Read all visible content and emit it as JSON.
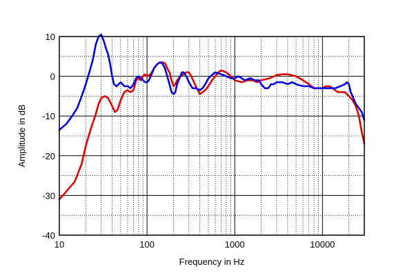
{
  "chart_data": {
    "type": "line",
    "xlabel": "Frequency in Hz",
    "ylabel": "Amplitude in dB",
    "xscale": "log",
    "xlim": [
      10,
      30000
    ],
    "ylim": [
      -40,
      10
    ],
    "grid": "on (major solid, minor dotted)",
    "legend": "none",
    "x_tick_labels": [
      "10",
      "100",
      "1000",
      "10000"
    ],
    "y_tick_labels": [
      "10",
      "0",
      "-10",
      "-20",
      "-30",
      "-40"
    ],
    "series": [
      {
        "color": "#e00000",
        "points": [
          [
            10,
            -31
          ],
          [
            12,
            -29
          ],
          [
            15,
            -26.5
          ],
          [
            18,
            -22
          ],
          [
            20,
            -17.5
          ],
          [
            23,
            -13
          ],
          [
            26,
            -9.5
          ],
          [
            28,
            -7
          ],
          [
            30,
            -5.5
          ],
          [
            33,
            -5
          ],
          [
            36,
            -5.5
          ],
          [
            40,
            -7.5
          ],
          [
            43,
            -9
          ],
          [
            46,
            -8.5
          ],
          [
            50,
            -6
          ],
          [
            55,
            -4
          ],
          [
            60,
            -3.5
          ],
          [
            65,
            -4
          ],
          [
            70,
            -3.5
          ],
          [
            75,
            -1
          ],
          [
            80,
            -0.5
          ],
          [
            85,
            -1
          ],
          [
            90,
            0
          ],
          [
            95,
            0.5
          ],
          [
            100,
            0
          ],
          [
            110,
            0.5
          ],
          [
            120,
            2
          ],
          [
            130,
            3
          ],
          [
            140,
            3.5
          ],
          [
            150,
            3.5
          ],
          [
            160,
            3.3
          ],
          [
            170,
            2
          ],
          [
            180,
            1
          ],
          [
            190,
            -1
          ],
          [
            200,
            -2.5
          ],
          [
            210,
            -2
          ],
          [
            220,
            -1
          ],
          [
            240,
            0
          ],
          [
            260,
            0.5
          ],
          [
            280,
            1
          ],
          [
            300,
            1
          ],
          [
            320,
            0
          ],
          [
            350,
            -2
          ],
          [
            380,
            -3.5
          ],
          [
            400,
            -4.5
          ],
          [
            430,
            -4
          ],
          [
            460,
            -3.5
          ],
          [
            500,
            -2.5
          ],
          [
            550,
            -1
          ],
          [
            600,
            0
          ],
          [
            650,
            1
          ],
          [
            700,
            1.5
          ],
          [
            800,
            1
          ],
          [
            900,
            0
          ],
          [
            1000,
            -1
          ],
          [
            1200,
            -1.5
          ],
          [
            1400,
            -1
          ],
          [
            1600,
            -1
          ],
          [
            1800,
            -1.5
          ],
          [
            2000,
            -1
          ],
          [
            2500,
            -0.5
          ],
          [
            3000,
            0.3
          ],
          [
            3500,
            0.5
          ],
          [
            4000,
            0.5
          ],
          [
            5000,
            0
          ],
          [
            6000,
            -1
          ],
          [
            7000,
            -2
          ],
          [
            8000,
            -3
          ],
          [
            9000,
            -3
          ],
          [
            10000,
            -3
          ],
          [
            11000,
            -2.5
          ],
          [
            12000,
            -2.5
          ],
          [
            13000,
            -3
          ],
          [
            15000,
            -4
          ],
          [
            18000,
            -4
          ],
          [
            20000,
            -5
          ],
          [
            22000,
            -6
          ],
          [
            24000,
            -7.5
          ],
          [
            26000,
            -10
          ],
          [
            28000,
            -14
          ],
          [
            30000,
            -17
          ]
        ]
      },
      {
        "color": "#0000e0",
        "points": [
          [
            10,
            -13.5
          ],
          [
            12,
            -12
          ],
          [
            14,
            -10
          ],
          [
            16,
            -8
          ],
          [
            18,
            -5
          ],
          [
            20,
            -2
          ],
          [
            22,
            1
          ],
          [
            24,
            4
          ],
          [
            26,
            8
          ],
          [
            28,
            10
          ],
          [
            30,
            10.5
          ],
          [
            32,
            9
          ],
          [
            34,
            7
          ],
          [
            36,
            5.5
          ],
          [
            38,
            3
          ],
          [
            40,
            0
          ],
          [
            42,
            -2
          ],
          [
            45,
            -2.5
          ],
          [
            50,
            -1.5
          ],
          [
            55,
            -2.5
          ],
          [
            60,
            -2.5
          ],
          [
            65,
            -3
          ],
          [
            70,
            -2
          ],
          [
            75,
            -0.5
          ],
          [
            80,
            0
          ],
          [
            85,
            -0.5
          ],
          [
            90,
            -1
          ],
          [
            95,
            -1.5
          ],
          [
            100,
            -1.5
          ],
          [
            105,
            -1
          ],
          [
            110,
            0
          ],
          [
            120,
            2
          ],
          [
            130,
            3
          ],
          [
            140,
            3.5
          ],
          [
            150,
            3.2
          ],
          [
            160,
            2
          ],
          [
            170,
            0
          ],
          [
            180,
            -2
          ],
          [
            190,
            -4
          ],
          [
            200,
            -4.5
          ],
          [
            210,
            -4
          ],
          [
            220,
            -2
          ],
          [
            240,
            0
          ],
          [
            250,
            1
          ],
          [
            260,
            1
          ],
          [
            280,
            0
          ],
          [
            300,
            -1.5
          ],
          [
            330,
            -3
          ],
          [
            360,
            -3
          ],
          [
            400,
            -3.5
          ],
          [
            430,
            -3
          ],
          [
            460,
            -2
          ],
          [
            500,
            -0.5
          ],
          [
            550,
            0.3
          ],
          [
            600,
            1
          ],
          [
            700,
            0.5
          ],
          [
            800,
            0
          ],
          [
            900,
            -0.5
          ],
          [
            1000,
            -0.5
          ],
          [
            1100,
            0
          ],
          [
            1200,
            -0.5
          ],
          [
            1300,
            -1
          ],
          [
            1500,
            -0.5
          ],
          [
            1700,
            -1
          ],
          [
            1900,
            -1
          ],
          [
            2000,
            -2
          ],
          [
            2200,
            -3
          ],
          [
            2400,
            -3
          ],
          [
            2600,
            -2
          ],
          [
            2800,
            -2
          ],
          [
            3000,
            -1.5
          ],
          [
            3500,
            -1.5
          ],
          [
            4000,
            -2
          ],
          [
            4500,
            -1.5
          ],
          [
            5000,
            -2
          ],
          [
            6000,
            -2.5
          ],
          [
            7000,
            -2.5
          ],
          [
            8000,
            -3
          ],
          [
            9000,
            -3
          ],
          [
            10000,
            -3
          ],
          [
            12000,
            -3
          ],
          [
            14000,
            -3
          ],
          [
            16000,
            -2.5
          ],
          [
            18000,
            -2
          ],
          [
            19000,
            -1.5
          ],
          [
            20000,
            -2
          ],
          [
            21000,
            -4
          ],
          [
            22000,
            -5
          ],
          [
            24000,
            -7
          ],
          [
            26000,
            -8
          ],
          [
            28000,
            -9
          ],
          [
            30000,
            -11
          ]
        ]
      }
    ]
  }
}
